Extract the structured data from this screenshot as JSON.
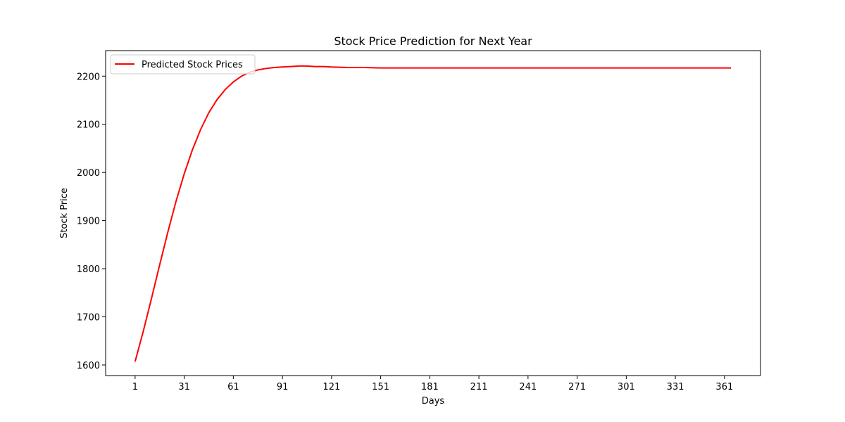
{
  "chart_data": {
    "type": "line",
    "title": "Stock Price Prediction for Next Year",
    "xlabel": "Days",
    "ylabel": "Stock Price",
    "xlim": [
      -17,
      383
    ],
    "ylim": [
      1578,
      2253
    ],
    "x_ticks": [
      1,
      31,
      61,
      91,
      121,
      151,
      181,
      211,
      241,
      271,
      301,
      331,
      361
    ],
    "y_ticks": [
      1600,
      1700,
      1800,
      1900,
      2000,
      2100,
      2200
    ],
    "grid": false,
    "legend_placement": "top-left",
    "series": [
      {
        "name": "Predicted Stock Prices",
        "color": "#ff0000",
        "x": [
          1,
          6,
          11,
          16,
          21,
          26,
          31,
          36,
          41,
          46,
          51,
          56,
          61,
          66,
          71,
          76,
          81,
          86,
          91,
          96,
          101,
          106,
          111,
          116,
          121,
          131,
          141,
          151,
          161,
          171,
          181,
          191,
          201,
          211,
          241,
          271,
          301,
          331,
          365
        ],
        "y": [
          1607,
          1670,
          1738,
          1808,
          1876,
          1940,
          1997,
          2047,
          2089,
          2124,
          2151,
          2172,
          2188,
          2200,
          2208,
          2213,
          2216,
          2218,
          2219,
          2220,
          2221,
          2221,
          2220,
          2220,
          2219,
          2218,
          2218,
          2217,
          2217,
          2217,
          2217,
          2217,
          2217,
          2217,
          2217,
          2217,
          2217,
          2217,
          2217
        ]
      }
    ]
  }
}
